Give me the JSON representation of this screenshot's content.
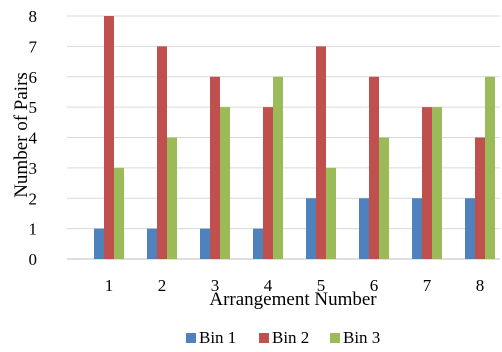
{
  "chart_data": {
    "type": "bar",
    "title": "",
    "xlabel": "Arrangement Number",
    "ylabel": "Number of Pairs",
    "categories": [
      "1",
      "2",
      "3",
      "4",
      "5",
      "6",
      "7",
      "8"
    ],
    "ylim": [
      0,
      8
    ],
    "yticks": [
      "0",
      "1",
      "2",
      "3",
      "4",
      "5",
      "6",
      "7",
      "8"
    ],
    "grid": true,
    "legend_position": "bottom",
    "series": [
      {
        "name": "Bin 1",
        "color": "#4f81bd",
        "values": [
          1,
          1,
          1,
          1,
          2,
          2,
          2,
          2
        ]
      },
      {
        "name": "Bin 2",
        "color": "#c0504d",
        "values": [
          8,
          7,
          6,
          5,
          7,
          6,
          5,
          4
        ]
      },
      {
        "name": "Bin 3",
        "color": "#9bbb59",
        "values": [
          3,
          4,
          5,
          6,
          3,
          4,
          5,
          6
        ]
      }
    ]
  }
}
